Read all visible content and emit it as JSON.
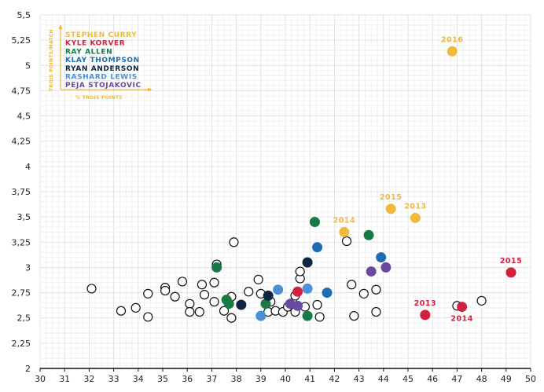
{
  "chart_data": {
    "type": "scatter",
    "xlim": [
      30,
      50
    ],
    "ylim": [
      2,
      5.5
    ],
    "x_ticks": [
      "30",
      "31",
      "32",
      "33",
      "34",
      "35",
      "36",
      "37",
      "38",
      "39",
      "40",
      "41",
      "42",
      "43",
      "44",
      "45",
      "46",
      "47",
      "48",
      "49",
      "50"
    ],
    "y_ticks": [
      "2",
      "2,25",
      "2,5",
      "2,75",
      "3",
      "3,25",
      "3,5",
      "3,75",
      "4",
      "4,25",
      "4,5",
      "4,75",
      "5",
      "5,25",
      "5,5"
    ],
    "grid": true,
    "legend_position": "top-left",
    "legend_axis_y_label": "TROIS POINTS/MATCH",
    "legend_axis_x_label": "% TROIS POINTS",
    "series": [
      {
        "name": "STEPHEN CURRY",
        "color": "#f0b93a",
        "points": [
          {
            "x": 42.4,
            "y": 3.35,
            "label": "2014"
          },
          {
            "x": 44.3,
            "y": 3.58,
            "label": "2015"
          },
          {
            "x": 45.3,
            "y": 3.49,
            "label": "2013"
          },
          {
            "x": 46.8,
            "y": 5.14,
            "label": "2016"
          }
        ]
      },
      {
        "name": "KYLE KORVER",
        "color": "#d2203f",
        "points": [
          {
            "x": 40.5,
            "y": 2.76,
            "label": ""
          },
          {
            "x": 45.7,
            "y": 2.53,
            "label": "2013"
          },
          {
            "x": 47.2,
            "y": 2.61,
            "label": "2014"
          },
          {
            "x": 49.2,
            "y": 2.95,
            "label": "2015"
          }
        ]
      },
      {
        "name": "RAY ALLEN",
        "color": "#177a46",
        "points": [
          {
            "x": 37.2,
            "y": 3.0,
            "label": ""
          },
          {
            "x": 37.6,
            "y": 2.68,
            "label": ""
          },
          {
            "x": 37.7,
            "y": 2.64,
            "label": ""
          },
          {
            "x": 39.2,
            "y": 2.64,
            "label": ""
          },
          {
            "x": 40.9,
            "y": 2.52,
            "label": ""
          },
          {
            "x": 41.2,
            "y": 3.45,
            "label": ""
          },
          {
            "x": 43.4,
            "y": 3.32,
            "label": ""
          }
        ]
      },
      {
        "name": "KLAY THOMPSON",
        "color": "#1d6db5",
        "points": [
          {
            "x": 41.3,
            "y": 3.2,
            "label": ""
          },
          {
            "x": 41.7,
            "y": 2.75,
            "label": ""
          },
          {
            "x": 43.9,
            "y": 3.1,
            "label": ""
          }
        ]
      },
      {
        "name": "RYAN ANDERSON",
        "color": "#0f2440",
        "points": [
          {
            "x": 38.2,
            "y": 2.63,
            "label": ""
          },
          {
            "x": 39.3,
            "y": 2.72,
            "label": ""
          },
          {
            "x": 40.9,
            "y": 3.05,
            "label": ""
          }
        ]
      },
      {
        "name": "RASHARD LEWIS",
        "color": "#4a90d6",
        "points": [
          {
            "x": 39.0,
            "y": 2.52,
            "label": ""
          },
          {
            "x": 39.7,
            "y": 2.78,
            "label": ""
          },
          {
            "x": 40.9,
            "y": 2.79,
            "label": ""
          }
        ]
      },
      {
        "name": "PEJA STOJAKOVIC",
        "color": "#6a4aa0",
        "points": [
          {
            "x": 40.2,
            "y": 2.64,
            "label": ""
          },
          {
            "x": 40.5,
            "y": 2.62,
            "label": ""
          },
          {
            "x": 43.5,
            "y": 2.96,
            "label": ""
          },
          {
            "x": 44.1,
            "y": 3.0,
            "label": ""
          }
        ]
      },
      {
        "name": "",
        "color": "#111111",
        "hollow": true,
        "points": [
          {
            "x": 32.1,
            "y": 2.79
          },
          {
            "x": 33.3,
            "y": 2.57
          },
          {
            "x": 33.9,
            "y": 2.6
          },
          {
            "x": 34.4,
            "y": 2.74
          },
          {
            "x": 34.4,
            "y": 2.51
          },
          {
            "x": 35.1,
            "y": 2.8
          },
          {
            "x": 35.1,
            "y": 2.77
          },
          {
            "x": 35.5,
            "y": 2.71
          },
          {
            "x": 35.8,
            "y": 2.86
          },
          {
            "x": 36.1,
            "y": 2.64
          },
          {
            "x": 36.1,
            "y": 2.56
          },
          {
            "x": 36.5,
            "y": 2.56
          },
          {
            "x": 36.6,
            "y": 2.83
          },
          {
            "x": 36.7,
            "y": 2.73
          },
          {
            "x": 37.1,
            "y": 2.85
          },
          {
            "x": 37.1,
            "y": 2.66
          },
          {
            "x": 37.2,
            "y": 3.03
          },
          {
            "x": 37.5,
            "y": 2.57
          },
          {
            "x": 37.8,
            "y": 2.5
          },
          {
            "x": 37.8,
            "y": 2.71
          },
          {
            "x": 37.9,
            "y": 3.25
          },
          {
            "x": 38.5,
            "y": 2.76
          },
          {
            "x": 38.9,
            "y": 2.88
          },
          {
            "x": 39.0,
            "y": 2.74
          },
          {
            "x": 39.3,
            "y": 2.56
          },
          {
            "x": 39.4,
            "y": 2.66
          },
          {
            "x": 39.6,
            "y": 2.57
          },
          {
            "x": 39.9,
            "y": 2.56
          },
          {
            "x": 40.1,
            "y": 2.61
          },
          {
            "x": 40.3,
            "y": 2.65
          },
          {
            "x": 40.4,
            "y": 2.56
          },
          {
            "x": 40.4,
            "y": 2.72
          },
          {
            "x": 40.6,
            "y": 2.89
          },
          {
            "x": 40.6,
            "y": 2.96
          },
          {
            "x": 40.8,
            "y": 2.61
          },
          {
            "x": 41.3,
            "y": 2.63
          },
          {
            "x": 41.4,
            "y": 2.51
          },
          {
            "x": 42.5,
            "y": 3.26
          },
          {
            "x": 42.7,
            "y": 2.83
          },
          {
            "x": 42.8,
            "y": 2.52
          },
          {
            "x": 43.2,
            "y": 2.74
          },
          {
            "x": 43.7,
            "y": 2.78
          },
          {
            "x": 43.7,
            "y": 2.56
          },
          {
            "x": 47.0,
            "y": 2.62
          },
          {
            "x": 48.0,
            "y": 2.67
          }
        ]
      }
    ]
  }
}
